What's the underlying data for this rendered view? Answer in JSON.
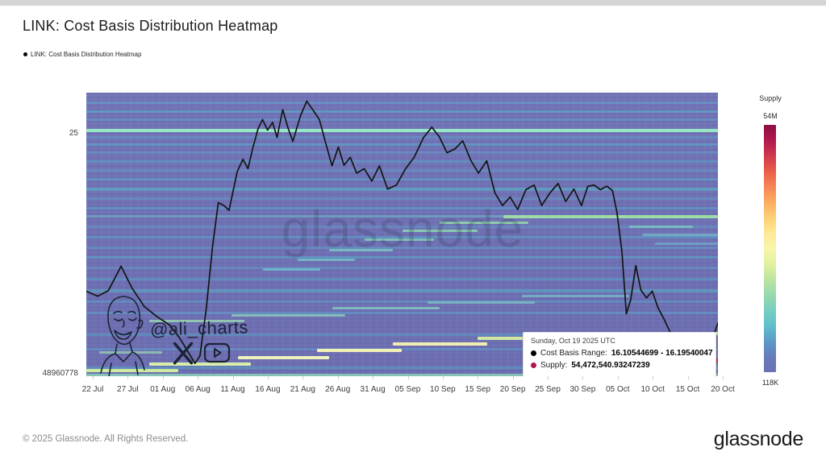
{
  "header": {
    "title": "LINK: Cost Basis Distribution Heatmap"
  },
  "legend": {
    "label": "LINK: Cost Basis Distribution Heatmap",
    "dot_color": "#000000"
  },
  "watermark": "glassnode",
  "signature": {
    "handle": "@ali_charts"
  },
  "tooltip": {
    "date": "Sunday, Oct 19 2025 UTC",
    "cost_basis_label": "Cost Basis Range:",
    "cost_basis_value": "16.10544699 - 16.19540047",
    "cost_basis_dot_color": "#000000",
    "supply_label": "Supply:",
    "supply_value": "54,472,540.93247239",
    "supply_dot_color": "#b31350"
  },
  "colorbar": {
    "title": "Supply",
    "max_label": "54M",
    "min_label": "118K",
    "gradient": [
      "#8c0e45",
      "#b01a4c",
      "#cf3a4e",
      "#e85e48",
      "#f68555",
      "#fcab62",
      "#fdcf76",
      "#fee995",
      "#f8f4ab",
      "#e3f2a0",
      "#bce4a1",
      "#98d9ad",
      "#77cec0",
      "#60bfca",
      "#5d9ac8",
      "#657cba",
      "#6c70b4"
    ]
  },
  "footer": {
    "copyright": "© 2025 Glassnode. All Rights Reserved.",
    "brand": "glassnode"
  },
  "chart_data": {
    "type": "heatmap",
    "title": "LINK: Cost Basis Distribution Heatmap",
    "x_tick_labels": [
      "22 Jul",
      "27 Jul",
      "01 Aug",
      "06 Aug",
      "11 Aug",
      "16 Aug",
      "21 Aug",
      "26 Aug",
      "31 Aug",
      "05 Sep",
      "10 Sep",
      "15 Sep",
      "20 Sep",
      "25 Sep",
      "30 Sep",
      "05 Oct",
      "10 Oct",
      "15 Oct",
      "20 Oct"
    ],
    "y_axis": {
      "top_label": "25",
      "bottom_label": "48960778",
      "scale": "log-price"
    },
    "supply_scale": {
      "max": "54M",
      "min": "118K"
    },
    "base_color": "#7173b5",
    "hovered_point": {
      "date": "Sunday, Oct 19 2025 UTC",
      "cost_basis_range": "16.10544699 - 16.19540047",
      "supply": "54,472,540.93247239"
    },
    "price_line": {
      "color": "#141414",
      "points": [
        [
          0.0,
          0.7
        ],
        [
          0.018,
          0.718
        ],
        [
          0.035,
          0.698
        ],
        [
          0.055,
          0.612
        ],
        [
          0.072,
          0.688
        ],
        [
          0.092,
          0.755
        ],
        [
          0.112,
          0.79
        ],
        [
          0.132,
          0.82
        ],
        [
          0.148,
          0.866
        ],
        [
          0.16,
          0.91
        ],
        [
          0.172,
          0.955
        ],
        [
          0.18,
          0.928
        ],
        [
          0.19,
          0.76
        ],
        [
          0.2,
          0.54
        ],
        [
          0.209,
          0.388
        ],
        [
          0.218,
          0.398
        ],
        [
          0.226,
          0.415
        ],
        [
          0.239,
          0.278
        ],
        [
          0.248,
          0.235
        ],
        [
          0.256,
          0.268
        ],
        [
          0.264,
          0.192
        ],
        [
          0.272,
          0.127
        ],
        [
          0.279,
          0.095
        ],
        [
          0.287,
          0.132
        ],
        [
          0.295,
          0.105
        ],
        [
          0.302,
          0.158
        ],
        [
          0.311,
          0.06
        ],
        [
          0.319,
          0.122
        ],
        [
          0.327,
          0.172
        ],
        [
          0.339,
          0.082
        ],
        [
          0.349,
          0.03
        ],
        [
          0.359,
          0.062
        ],
        [
          0.369,
          0.095
        ],
        [
          0.379,
          0.178
        ],
        [
          0.389,
          0.258
        ],
        [
          0.399,
          0.192
        ],
        [
          0.408,
          0.256
        ],
        [
          0.418,
          0.228
        ],
        [
          0.428,
          0.284
        ],
        [
          0.44,
          0.268
        ],
        [
          0.452,
          0.312
        ],
        [
          0.464,
          0.258
        ],
        [
          0.477,
          0.34
        ],
        [
          0.491,
          0.326
        ],
        [
          0.505,
          0.27
        ],
        [
          0.519,
          0.228
        ],
        [
          0.534,
          0.158
        ],
        [
          0.547,
          0.122
        ],
        [
          0.559,
          0.156
        ],
        [
          0.571,
          0.212
        ],
        [
          0.584,
          0.198
        ],
        [
          0.596,
          0.17
        ],
        [
          0.609,
          0.24
        ],
        [
          0.621,
          0.284
        ],
        [
          0.634,
          0.24
        ],
        [
          0.647,
          0.354
        ],
        [
          0.659,
          0.398
        ],
        [
          0.671,
          0.368
        ],
        [
          0.683,
          0.412
        ],
        [
          0.696,
          0.342
        ],
        [
          0.709,
          0.326
        ],
        [
          0.721,
          0.398
        ],
        [
          0.734,
          0.354
        ],
        [
          0.747,
          0.32
        ],
        [
          0.759,
          0.384
        ],
        [
          0.772,
          0.34
        ],
        [
          0.784,
          0.398
        ],
        [
          0.794,
          0.33
        ],
        [
          0.804,
          0.326
        ],
        [
          0.814,
          0.342
        ],
        [
          0.824,
          0.33
        ],
        [
          0.833,
          0.345
        ],
        [
          0.84,
          0.42
        ],
        [
          0.848,
          0.56
        ],
        [
          0.855,
          0.78
        ],
        [
          0.862,
          0.73
        ],
        [
          0.87,
          0.61
        ],
        [
          0.878,
          0.696
        ],
        [
          0.887,
          0.724
        ],
        [
          0.896,
          0.7
        ],
        [
          0.905,
          0.758
        ],
        [
          0.915,
          0.8
        ],
        [
          0.928,
          0.862
        ],
        [
          0.942,
          0.87
        ],
        [
          0.955,
          0.905
        ],
        [
          0.968,
          0.922
        ],
        [
          0.98,
          0.945
        ],
        [
          1.0,
          0.812
        ]
      ]
    },
    "bands": [
      [
        0.03,
        0,
        1,
        3,
        "#5caed0",
        0.45
      ],
      [
        0.062,
        0,
        1,
        3,
        "#52b4cc",
        0.55
      ],
      [
        0.092,
        0,
        1,
        3,
        "#5caed0",
        0.4
      ],
      [
        0.128,
        0,
        1,
        4,
        "#96e8c4",
        1.0
      ],
      [
        0.152,
        0,
        1,
        3,
        "#5caed0",
        0.4
      ],
      [
        0.178,
        0,
        1,
        3,
        "#52b4cc",
        0.5
      ],
      [
        0.208,
        0,
        1,
        3,
        "#5caed0",
        0.35
      ],
      [
        0.238,
        0,
        1,
        3,
        "#52b4cc",
        0.45
      ],
      [
        0.27,
        0,
        1,
        3,
        "#5caed0",
        0.4
      ],
      [
        0.302,
        0,
        1,
        3,
        "#52b4cc",
        0.45
      ],
      [
        0.336,
        0,
        1,
        4,
        "#56bac8",
        0.55
      ],
      [
        0.37,
        0,
        1,
        3,
        "#5caed0",
        0.4
      ],
      [
        0.402,
        0,
        1,
        3,
        "#52b4cc",
        0.45
      ],
      [
        0.432,
        0,
        0.66,
        3,
        "#6cc2c8",
        0.5
      ],
      [
        0.432,
        0.66,
        1,
        4,
        "#9de2a6",
        0.95
      ],
      [
        0.47,
        0,
        1,
        3,
        "#5caed0",
        0.38
      ],
      [
        0.506,
        0,
        1,
        3,
        "#52b4cc",
        0.45
      ],
      [
        0.542,
        0,
        1,
        3,
        "#5caed0",
        0.4
      ],
      [
        0.578,
        0,
        1,
        3,
        "#52b4cc",
        0.48
      ],
      [
        0.614,
        0,
        1,
        3,
        "#5caed0",
        0.36
      ],
      [
        0.652,
        0,
        1,
        3,
        "#52b4cc",
        0.45
      ],
      [
        0.692,
        0,
        1,
        4,
        "#56bac8",
        0.5
      ],
      [
        0.732,
        0,
        1,
        3,
        "#52b4cc",
        0.4
      ],
      [
        0.772,
        0,
        1,
        3,
        "#5caed0",
        0.45
      ],
      [
        0.85,
        0,
        1,
        3,
        "#52b4cc",
        0.4
      ],
      [
        0.9,
        0,
        1,
        3,
        "#5caed0",
        0.4
      ],
      [
        0.965,
        0,
        1,
        3,
        "#52b4cc",
        0.45
      ],
      [
        0.62,
        0.28,
        0.37,
        3,
        "#6fc0d0",
        0.8
      ],
      [
        0.585,
        0.335,
        0.425,
        3,
        "#74c6c8",
        0.8
      ],
      [
        0.55,
        0.385,
        0.485,
        3,
        "#7cccc2",
        0.8
      ],
      [
        0.515,
        0.44,
        0.55,
        3,
        "#84d2ba",
        0.8
      ],
      [
        0.482,
        0.5,
        0.62,
        3,
        "#8cd8b2",
        0.85
      ],
      [
        0.455,
        0.56,
        0.7,
        3,
        "#93dcab",
        0.85
      ],
      [
        0.802,
        0.1,
        0.25,
        3,
        "#9bd9b4",
        0.8
      ],
      [
        0.78,
        0.23,
        0.41,
        3,
        "#8fd4bb",
        0.75
      ],
      [
        0.757,
        0.39,
        0.56,
        3,
        "#86cfc2",
        0.75
      ],
      [
        0.735,
        0.54,
        0.71,
        3,
        "#7ecac7",
        0.7
      ],
      [
        0.713,
        0.69,
        0.86,
        3,
        "#78c4cb",
        0.7
      ],
      [
        0.975,
        0.0,
        0.145,
        4,
        "#cdeaa0",
        1
      ],
      [
        0.952,
        0.1,
        0.26,
        4,
        "#d9eeab",
        1
      ],
      [
        0.928,
        0.24,
        0.385,
        4,
        "#eef2bb",
        1
      ],
      [
        0.904,
        0.365,
        0.5,
        4,
        "#f3f0b8",
        1
      ],
      [
        0.88,
        0.485,
        0.635,
        4,
        "#f2eeb2",
        1
      ],
      [
        0.86,
        0.62,
        0.78,
        4,
        "#cfe9a2",
        1
      ],
      [
        0.845,
        0.76,
        1.0,
        4,
        "#b9e595",
        1
      ],
      [
        0.937,
        0.955,
        1.0,
        5,
        "#c22550",
        1
      ],
      [
        0.468,
        0.86,
        0.96,
        3,
        "#7cc8c6",
        0.8
      ],
      [
        0.498,
        0.88,
        1.0,
        3,
        "#74c2cc",
        0.7
      ],
      [
        0.528,
        0.9,
        1.0,
        3,
        "#6fbcd0",
        0.6
      ],
      [
        0.912,
        0.02,
        0.12,
        3,
        "#9bd9b4",
        0.7
      ],
      [
        0.992,
        0,
        1,
        3,
        "#8ed8b8",
        0.8
      ]
    ]
  }
}
